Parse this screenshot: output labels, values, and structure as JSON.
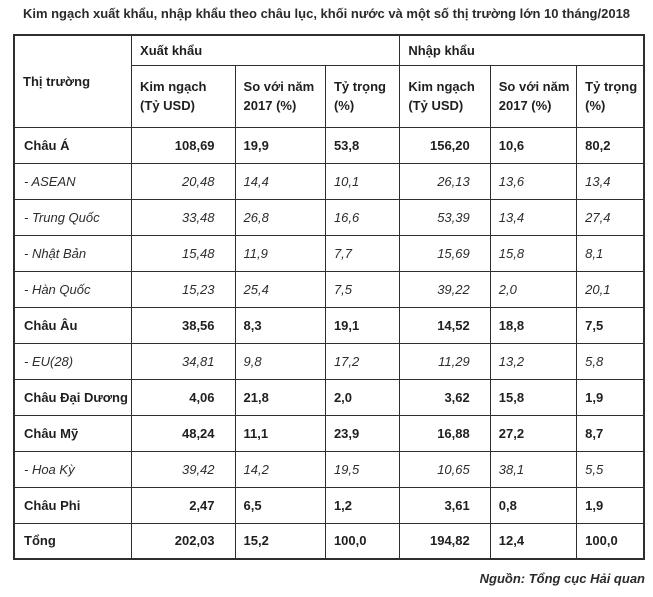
{
  "title": "Kim ngạch xuất khẩu, nhập khẩu theo châu lục, khối nước và một số thị trường lớn 10 tháng/2018",
  "source": "Nguồn: Tổng cục Hải quan",
  "table": {
    "market_header": "Thị trường",
    "group_headers": [
      "Xuất khẩu",
      "Nhập khẩu"
    ],
    "columns": [
      "Kim ngạch\n(Tỷ USD)",
      "So với năm\n2017 (%)",
      "Tỷ trọng\n(%)"
    ],
    "rows": [
      {
        "label": "Châu Á",
        "style": "bold",
        "values": [
          "108,69",
          "19,9",
          "53,8",
          "156,20",
          "10,6",
          "80,2"
        ]
      },
      {
        "label": "- ASEAN",
        "style": "italic",
        "values": [
          "20,48",
          "14,4",
          "10,1",
          "26,13",
          "13,6",
          "13,4"
        ]
      },
      {
        "label": "- Trung Quốc",
        "style": "italic",
        "values": [
          "33,48",
          "26,8",
          "16,6",
          "53,39",
          "13,4",
          "27,4"
        ]
      },
      {
        "label": "- Nhật Bản",
        "style": "italic",
        "values": [
          "15,48",
          "11,9",
          "7,7",
          "15,69",
          "15,8",
          "8,1"
        ]
      },
      {
        "label": "- Hàn Quốc",
        "style": "italic",
        "values": [
          "15,23",
          "25,4",
          "7,5",
          "39,22",
          "2,0",
          "20,1"
        ]
      },
      {
        "label": "Châu Âu",
        "style": "bold",
        "values": [
          "38,56",
          "8,3",
          "19,1",
          "14,52",
          "18,8",
          "7,5"
        ]
      },
      {
        "label": "- EU(28)",
        "style": "italic",
        "values": [
          "34,81",
          "9,8",
          "17,2",
          "11,29",
          "13,2",
          "5,8"
        ]
      },
      {
        "label": "Châu Đại Dương",
        "style": "bold",
        "values": [
          "4,06",
          "21,8",
          "2,0",
          "3,62",
          "15,8",
          "1,9"
        ]
      },
      {
        "label": "Châu Mỹ",
        "style": "bold",
        "values": [
          "48,24",
          "11,1",
          "23,9",
          "16,88",
          "27,2",
          "8,7"
        ]
      },
      {
        "label": "- Hoa Kỳ",
        "style": "italic",
        "values": [
          "39,42",
          "14,2",
          "19,5",
          "10,65",
          "38,1",
          "5,5"
        ]
      },
      {
        "label": "Châu Phi",
        "style": "bold",
        "values": [
          "2,47",
          "6,5",
          "1,2",
          "3,61",
          "0,8",
          "1,9"
        ]
      },
      {
        "label": "Tổng",
        "style": "bold",
        "values": [
          "202,03",
          "15,2",
          "100,0",
          "194,82",
          "12,4",
          "100,0"
        ]
      }
    ]
  }
}
